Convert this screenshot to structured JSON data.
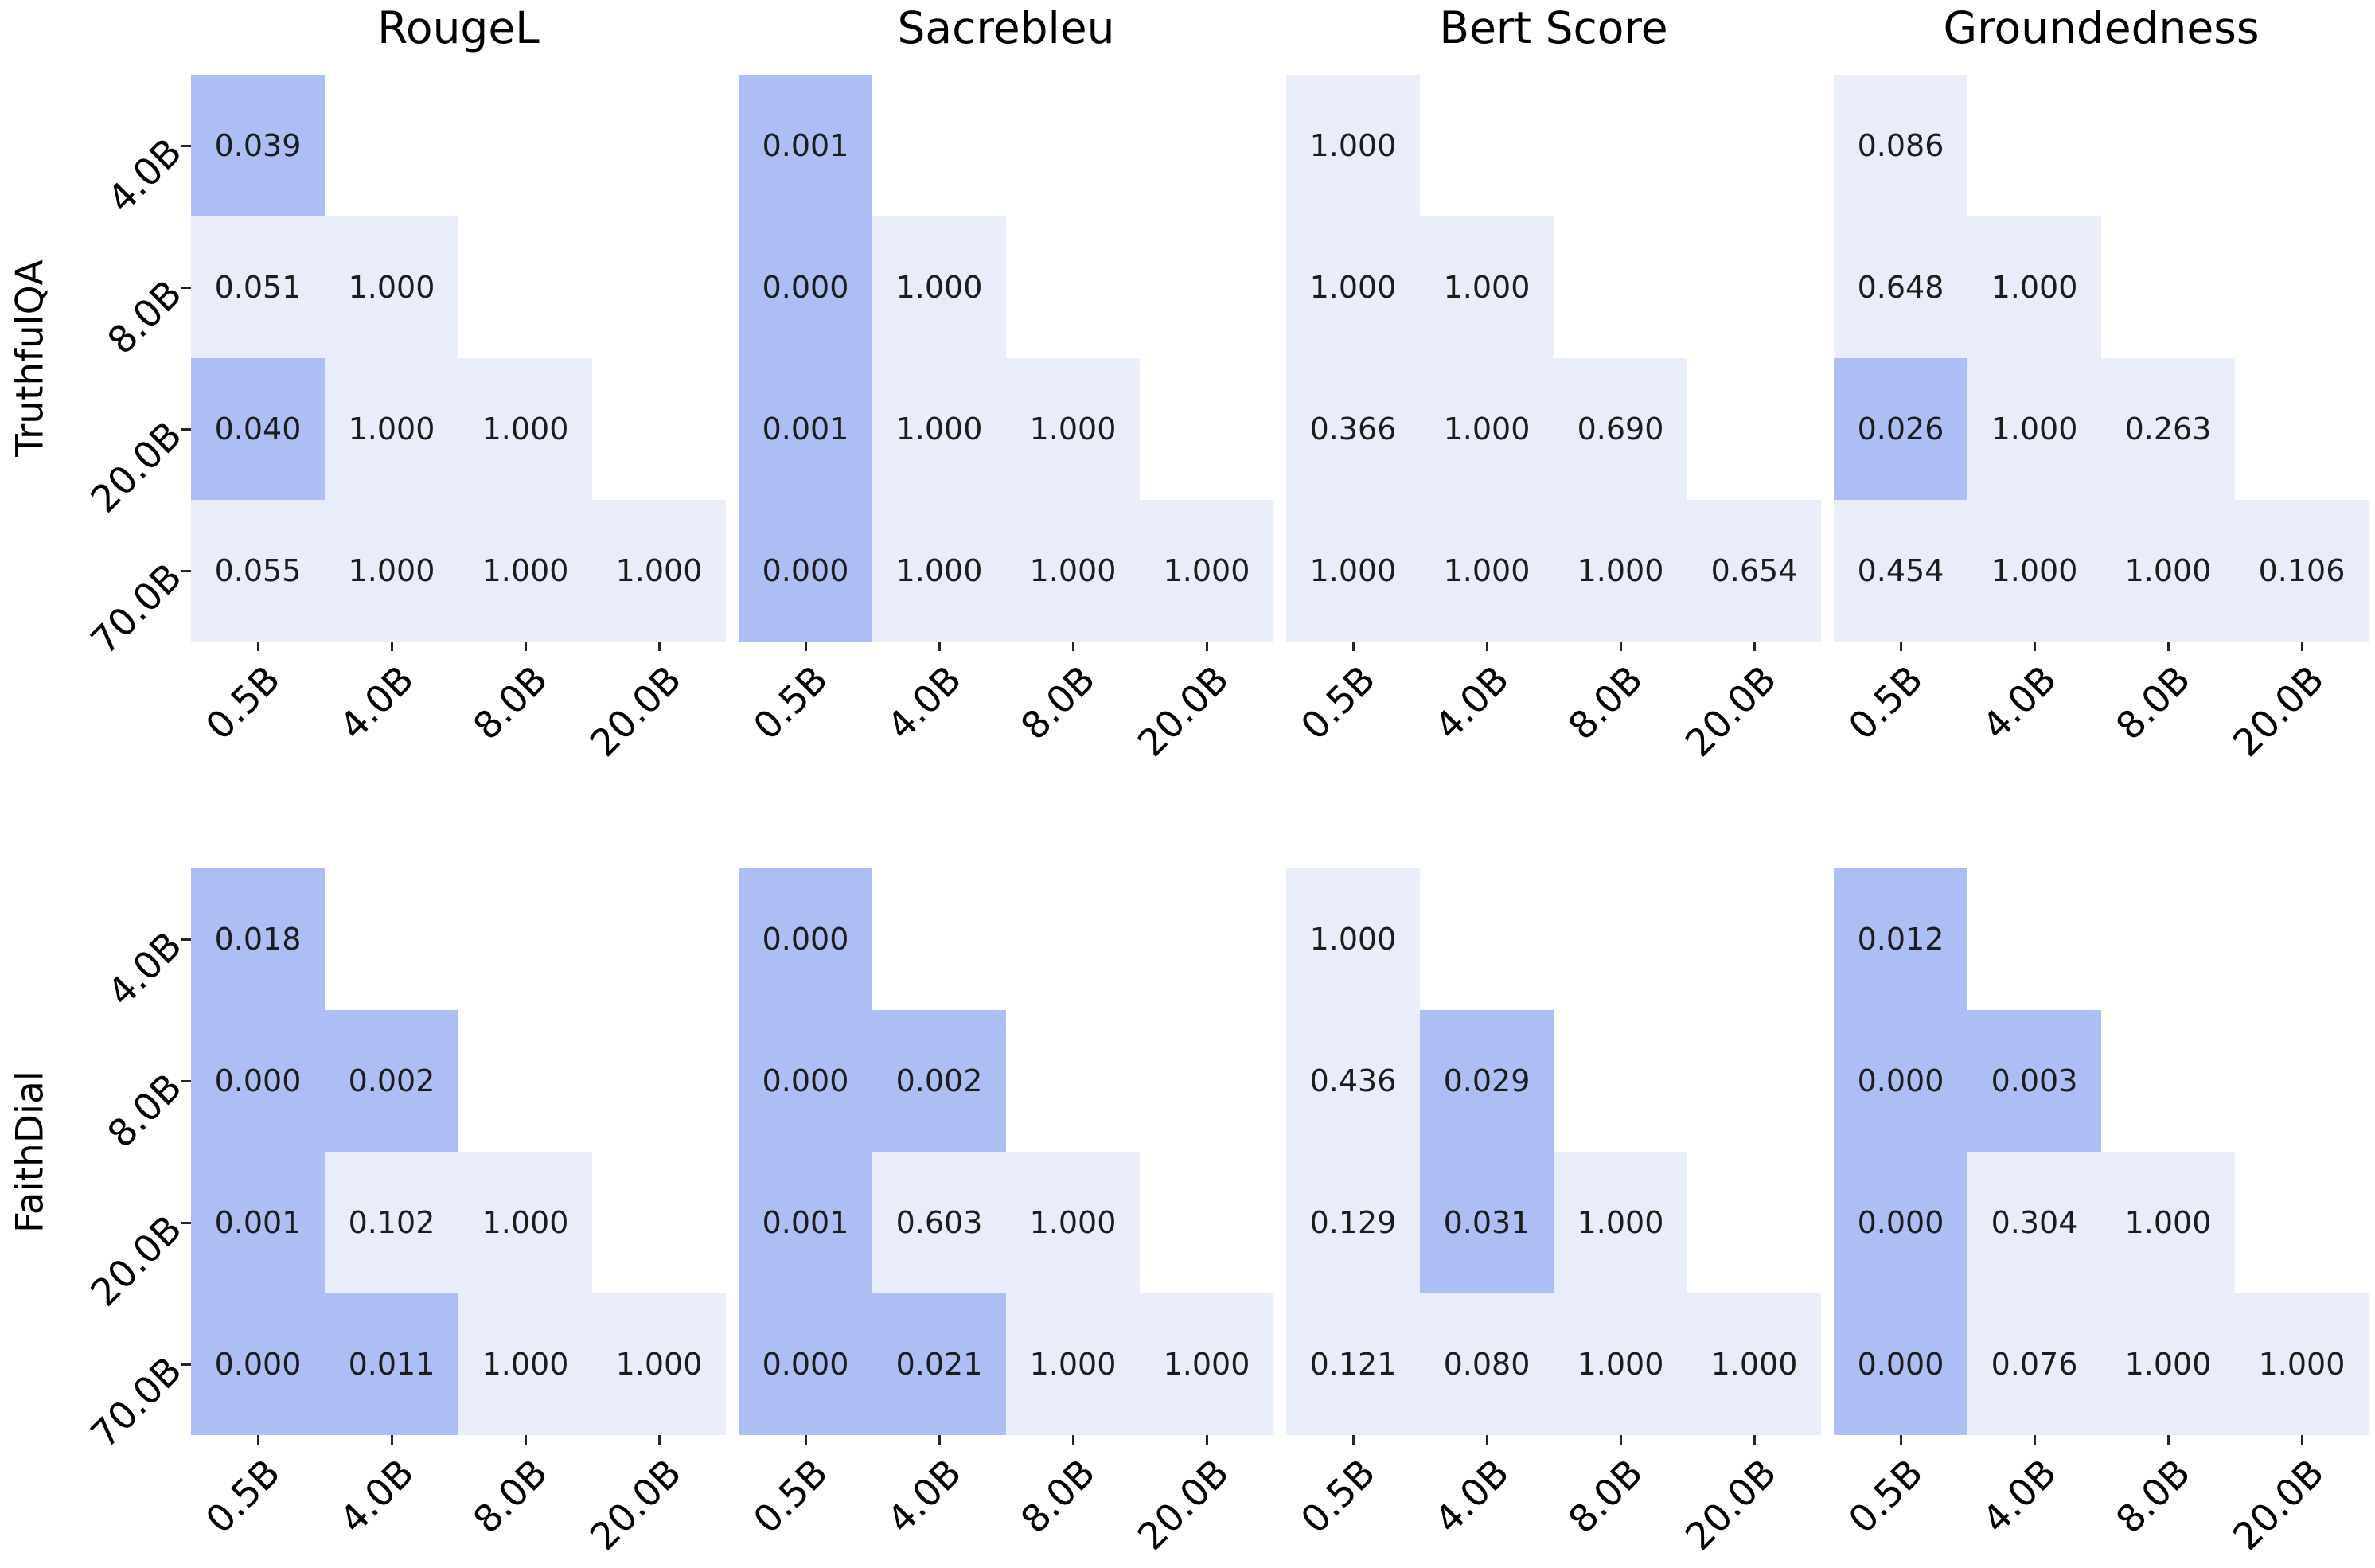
{
  "figure": {
    "datasets": [
      "TruthfulQA",
      "FaithDial"
    ],
    "metrics": [
      "RougeL",
      "Sacrebleu",
      "Bert Score",
      "Groundedness"
    ],
    "row_tick_labels": [
      "4.0B",
      "8.0B",
      "20.0B",
      "70.0B"
    ],
    "col_tick_labels": [
      "0.5B",
      "4.0B",
      "8.0B",
      "20.0B"
    ],
    "significance_threshold": 0.05,
    "value_decimals": 3,
    "colors": {
      "significant_cell": "#adbef5",
      "nonsignificant_cell": "#e9edf9",
      "value_text": "#1c1c1c",
      "label_text": "#000000",
      "background": "#ffffff"
    }
  },
  "chart_data": [
    {
      "type": "heatmap",
      "dataset": "TruthfulQA",
      "metric": "RougeL",
      "rows": [
        "4.0B",
        "8.0B",
        "20.0B",
        "70.0B"
      ],
      "cols": [
        "0.5B",
        "4.0B",
        "8.0B",
        "20.0B"
      ],
      "values": [
        [
          0.039,
          null,
          null,
          null
        ],
        [
          0.051,
          1.0,
          null,
          null
        ],
        [
          0.04,
          1.0,
          1.0,
          null
        ],
        [
          0.055,
          1.0,
          1.0,
          1.0
        ]
      ]
    },
    {
      "type": "heatmap",
      "dataset": "TruthfulQA",
      "metric": "Sacrebleu",
      "rows": [
        "4.0B",
        "8.0B",
        "20.0B",
        "70.0B"
      ],
      "cols": [
        "0.5B",
        "4.0B",
        "8.0B",
        "20.0B"
      ],
      "values": [
        [
          0.001,
          null,
          null,
          null
        ],
        [
          0.0,
          1.0,
          null,
          null
        ],
        [
          0.001,
          1.0,
          1.0,
          null
        ],
        [
          0.0,
          1.0,
          1.0,
          1.0
        ]
      ]
    },
    {
      "type": "heatmap",
      "dataset": "TruthfulQA",
      "metric": "Bert Score",
      "rows": [
        "4.0B",
        "8.0B",
        "20.0B",
        "70.0B"
      ],
      "cols": [
        "0.5B",
        "4.0B",
        "8.0B",
        "20.0B"
      ],
      "values": [
        [
          1.0,
          null,
          null,
          null
        ],
        [
          1.0,
          1.0,
          null,
          null
        ],
        [
          0.366,
          1.0,
          0.69,
          null
        ],
        [
          1.0,
          1.0,
          1.0,
          0.654
        ]
      ]
    },
    {
      "type": "heatmap",
      "dataset": "TruthfulQA",
      "metric": "Groundedness",
      "rows": [
        "4.0B",
        "8.0B",
        "20.0B",
        "70.0B"
      ],
      "cols": [
        "0.5B",
        "4.0B",
        "8.0B",
        "20.0B"
      ],
      "values": [
        [
          0.086,
          null,
          null,
          null
        ],
        [
          0.648,
          1.0,
          null,
          null
        ],
        [
          0.026,
          1.0,
          0.263,
          null
        ],
        [
          0.454,
          1.0,
          1.0,
          0.106
        ]
      ]
    },
    {
      "type": "heatmap",
      "dataset": "FaithDial",
      "metric": "RougeL",
      "rows": [
        "4.0B",
        "8.0B",
        "20.0B",
        "70.0B"
      ],
      "cols": [
        "0.5B",
        "4.0B",
        "8.0B",
        "20.0B"
      ],
      "values": [
        [
          0.018,
          null,
          null,
          null
        ],
        [
          0.0,
          0.002,
          null,
          null
        ],
        [
          0.001,
          0.102,
          1.0,
          null
        ],
        [
          0.0,
          0.011,
          1.0,
          1.0
        ]
      ]
    },
    {
      "type": "heatmap",
      "dataset": "FaithDial",
      "metric": "Sacrebleu",
      "rows": [
        "4.0B",
        "8.0B",
        "20.0B",
        "70.0B"
      ],
      "cols": [
        "0.5B",
        "4.0B",
        "8.0B",
        "20.0B"
      ],
      "values": [
        [
          0.0,
          null,
          null,
          null
        ],
        [
          0.0,
          0.002,
          null,
          null
        ],
        [
          0.001,
          0.603,
          1.0,
          null
        ],
        [
          0.0,
          0.021,
          1.0,
          1.0
        ]
      ]
    },
    {
      "type": "heatmap",
      "dataset": "FaithDial",
      "metric": "Bert Score",
      "rows": [
        "4.0B",
        "8.0B",
        "20.0B",
        "70.0B"
      ],
      "cols": [
        "0.5B",
        "4.0B",
        "8.0B",
        "20.0B"
      ],
      "values": [
        [
          1.0,
          null,
          null,
          null
        ],
        [
          0.436,
          0.029,
          null,
          null
        ],
        [
          0.129,
          0.031,
          1.0,
          null
        ],
        [
          0.121,
          0.08,
          1.0,
          1.0
        ]
      ]
    },
    {
      "type": "heatmap",
      "dataset": "FaithDial",
      "metric": "Groundedness",
      "rows": [
        "4.0B",
        "8.0B",
        "20.0B",
        "70.0B"
      ],
      "cols": [
        "0.5B",
        "4.0B",
        "8.0B",
        "20.0B"
      ],
      "values": [
        [
          0.012,
          null,
          null,
          null
        ],
        [
          0.0,
          0.003,
          null,
          null
        ],
        [
          0.0,
          0.304,
          1.0,
          null
        ],
        [
          0.0,
          0.076,
          1.0,
          1.0
        ]
      ]
    }
  ]
}
